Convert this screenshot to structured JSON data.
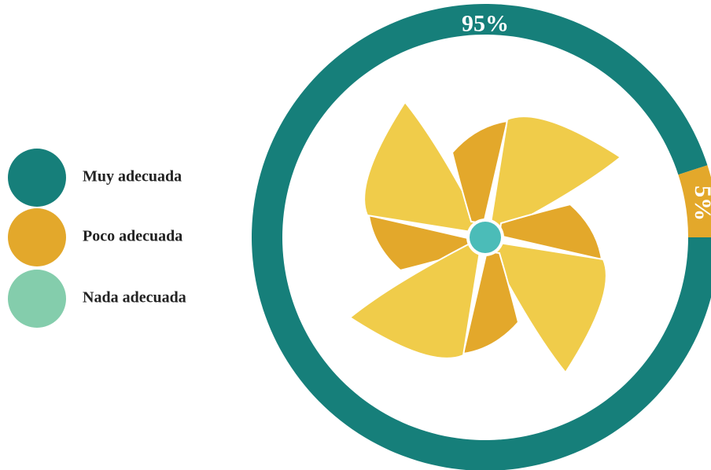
{
  "chart_data": {
    "type": "pie",
    "donut": true,
    "categories": [
      "Muy adecuada",
      "Poco adecuada",
      "Nada adecuada"
    ],
    "values": [
      95,
      5,
      0
    ],
    "value_labels": [
      "95%",
      "5%",
      null
    ],
    "colors": [
      "#167f7a",
      "#e3a82b",
      "#84cdac"
    ],
    "legend": "left"
  }
}
